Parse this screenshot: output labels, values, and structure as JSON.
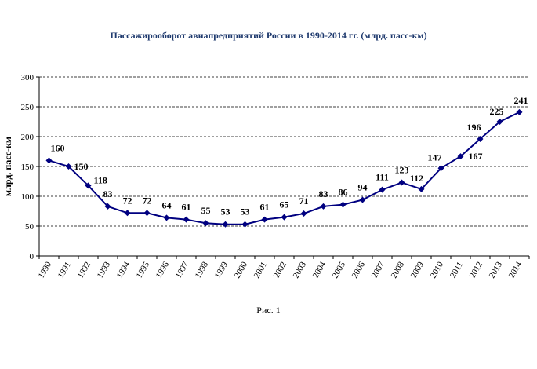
{
  "chart_data": {
    "type": "line",
    "title": "Пассажирооборот авиапредприятий России в 1990-2014 гг. (млрд. пасс-км)",
    "ylabel": "млрд. пасс-км",
    "xlabel": "",
    "caption": "Рис. 1",
    "ylim": [
      0,
      300
    ],
    "yticks": [
      "0",
      "50",
      "100",
      "150",
      "200",
      "250",
      "300"
    ],
    "categories": [
      "1990",
      "1991",
      "1992",
      "1993",
      "1994",
      "1995",
      "1996",
      "1997",
      "1998",
      "1999",
      "2000",
      "2001",
      "2002",
      "2003",
      "2004",
      "2005",
      "2006",
      "2007",
      "2008",
      "2009",
      "2010",
      "2011",
      "2012",
      "2013",
      "2014"
    ],
    "values": [
      160,
      150,
      118,
      83,
      72,
      72,
      64,
      61,
      55,
      53,
      53,
      61,
      65,
      71,
      83,
      86,
      94,
      111,
      123,
      112,
      147,
      167,
      196,
      225,
      241
    ],
    "grid": true,
    "legend": "none",
    "line_color": "#000080",
    "grid_color": "#000000"
  }
}
